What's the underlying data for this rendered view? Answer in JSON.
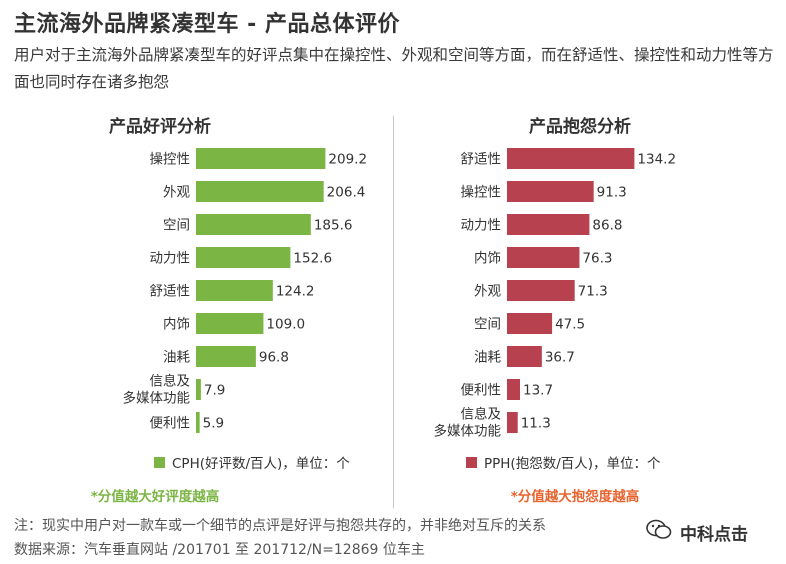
{
  "title": "主流海外品牌紧凑型车 - 产品总体评价",
  "subtitle": "用户对于主流海外品牌紧凑型车的好评点集中在操控性、外观和空间等方面，而在舒适性、操控性和动力性等方面也同时存在诸多抱怨",
  "colors": {
    "positive": "#7bb544",
    "negative": "#b7414f"
  },
  "chart_data": [
    {
      "type": "bar",
      "orientation": "horizontal",
      "title": "产品好评分析",
      "categories": [
        "操控性",
        "外观",
        "空间",
        "动力性",
        "舒适性",
        "内饰",
        "油耗",
        "信息及\n多媒体功能",
        "便利性"
      ],
      "values": [
        209.2,
        206.4,
        185.6,
        152.6,
        124.2,
        109.0,
        96.8,
        7.9,
        5.9
      ],
      "value_labels": [
        "209.2",
        "206.4",
        "185.6",
        "152.6",
        "124.2",
        "109.0",
        "96.8",
        "7.9",
        "5.9"
      ],
      "legend": "CPH(好评数/百人)，单位：个",
      "note": "*分值越大好评度越高",
      "xlim": [
        0,
        215
      ]
    },
    {
      "type": "bar",
      "orientation": "horizontal",
      "title": "产品抱怨分析",
      "categories": [
        "舒适性",
        "操控性",
        "动力性",
        "内饰",
        "外观",
        "空间",
        "油耗",
        "便利性",
        "信息及\n多媒体功能"
      ],
      "values": [
        134.2,
        91.3,
        86.8,
        76.3,
        71.3,
        47.5,
        36.7,
        13.7,
        11.3
      ],
      "value_labels": [
        "134.2",
        "91.3",
        "86.8",
        "76.3",
        "71.3",
        "47.5",
        "36.7",
        "13.7",
        "11.3"
      ],
      "legend": "PPH(抱怨数/百人)，单位：个",
      "note": "*分值越大抱怨度越高",
      "xlim": [
        0,
        138
      ]
    }
  ],
  "footer": {
    "note": "注：现实中用户对一款车或一个细节的点评是好评与抱怨共存的，并非绝对互斥的关系",
    "source": "数据来源：汽车垂直网站 /201701 至 201712/N=12869 位车主"
  },
  "watermark": {
    "text": "中科点击",
    "icon": "wechat-icon"
  }
}
